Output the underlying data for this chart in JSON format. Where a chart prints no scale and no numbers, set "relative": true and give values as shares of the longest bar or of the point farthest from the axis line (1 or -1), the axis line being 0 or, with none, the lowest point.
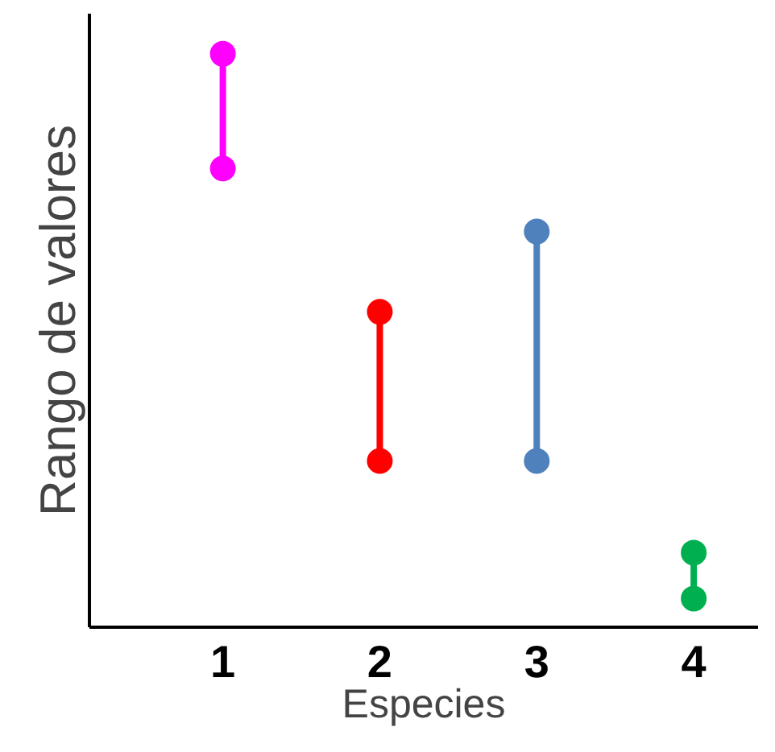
{
  "chart_data": {
    "type": "line",
    "relative": true,
    "xlabel": "Especies",
    "ylabel": "Rango de valores",
    "xlim": [
      0.15,
      4.41
    ],
    "xticks": [
      1,
      2,
      3,
      4
    ],
    "series": [
      {
        "x": [
          1,
          1
        ],
        "values": [
          0.8,
          1.0
        ],
        "color": "#ff00ff"
      },
      {
        "x": [
          2,
          2
        ],
        "values": [
          0.29,
          0.55
        ],
        "color": "#ff0000"
      },
      {
        "x": [
          3,
          3
        ],
        "values": [
          0.29,
          0.69
        ],
        "color": "#4f81bd"
      },
      {
        "x": [
          4,
          4
        ],
        "values": [
          0.05,
          0.13
        ],
        "color": "#00b050"
      }
    ],
    "marker": "circle",
    "line_style": "solid",
    "grid": false
  }
}
